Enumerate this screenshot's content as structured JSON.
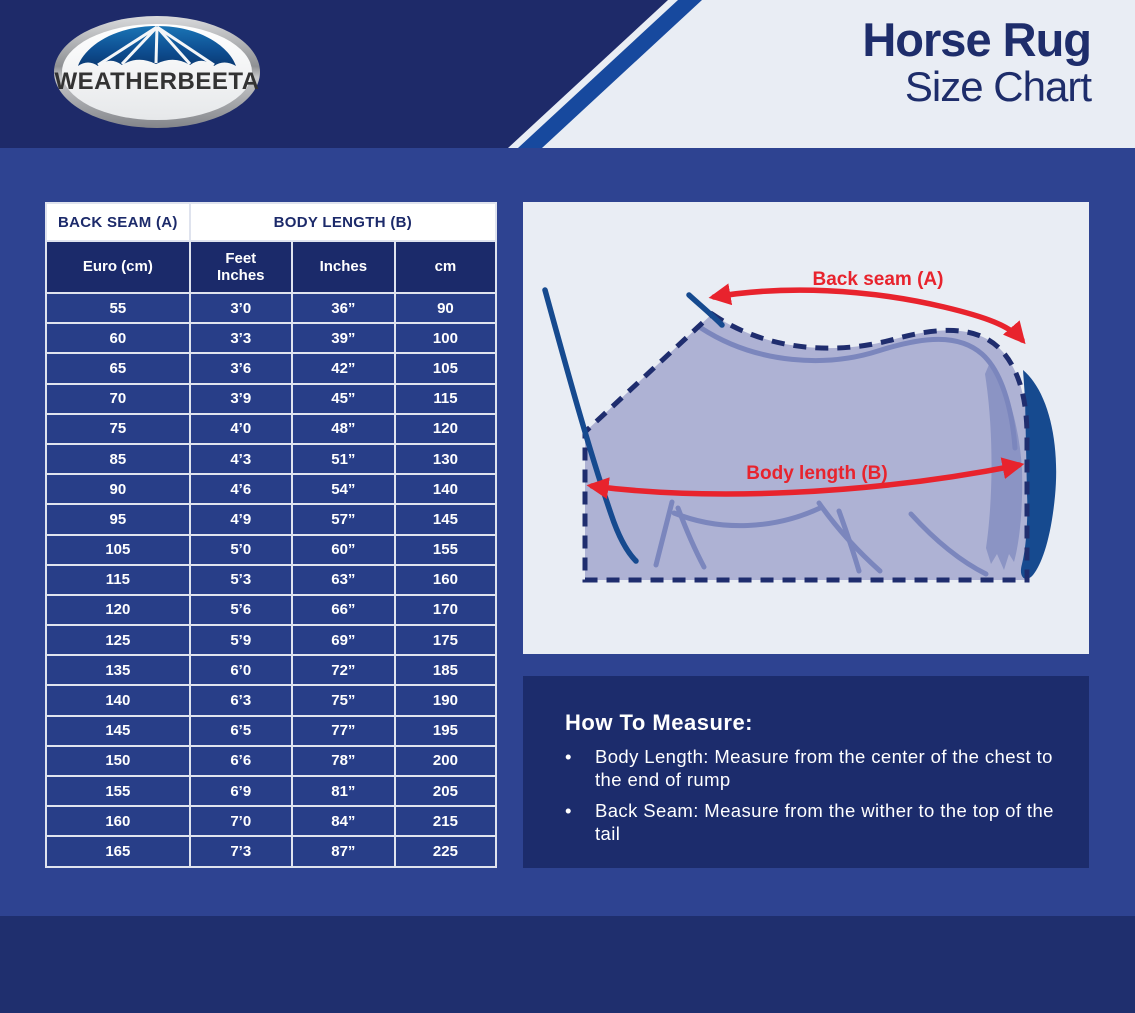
{
  "header": {
    "logo_text": "WEATHERBEETA",
    "title_line1": "Horse Rug",
    "title_line2": "Size Chart"
  },
  "table": {
    "group_headers": {
      "back_seam": "BACK SEAM (A)",
      "body_length": "BODY LENGTH (B)"
    },
    "columns": [
      "Euro (cm)",
      "Feet\nInches",
      "Inches",
      "cm"
    ],
    "rows": [
      [
        "55",
        "3’0",
        "36”",
        "90"
      ],
      [
        "60",
        "3’3",
        "39”",
        "100"
      ],
      [
        "65",
        "3’6",
        "42”",
        "105"
      ],
      [
        "70",
        "3’9",
        "45”",
        "115"
      ],
      [
        "75",
        "4’0",
        "48”",
        "120"
      ],
      [
        "85",
        "4’3",
        "51”",
        "130"
      ],
      [
        "90",
        "4’6",
        "54”",
        "140"
      ],
      [
        "95",
        "4’9",
        "57”",
        "145"
      ],
      [
        "105",
        "5’0",
        "60”",
        "155"
      ],
      [
        "115",
        "5’3",
        "63”",
        "160"
      ],
      [
        "120",
        "5’6",
        "66”",
        "170"
      ],
      [
        "125",
        "5’9",
        "69”",
        "175"
      ],
      [
        "135",
        "6’0",
        "72”",
        "185"
      ],
      [
        "140",
        "6’3",
        "75”",
        "190"
      ],
      [
        "145",
        "6’5",
        "77”",
        "195"
      ],
      [
        "150",
        "6’6",
        "78”",
        "200"
      ],
      [
        "155",
        "6’9",
        "81”",
        "205"
      ],
      [
        "160",
        "7’0",
        "84”",
        "215"
      ],
      [
        "165",
        "7’3",
        "87”",
        "225"
      ]
    ]
  },
  "diagram": {
    "back_seam_label": "Back seam (A)",
    "body_length_label": "Body length (B)"
  },
  "howto": {
    "heading": "How To Measure:",
    "bullets": [
      "Body Length: Measure from the center of the chest to the end of rump",
      "Back Seam: Measure from the wither to the top of the tail"
    ]
  },
  "colors": {
    "page_background": "#2e4391",
    "dark_navy": "#1e2a69",
    "diagonal_stripe_blue": "#17499e",
    "light_panel": "#e9edf4",
    "table_cell_blue": "#283e88",
    "table_header_navy": "#1b2a6a",
    "gridline": "#dfe3ee",
    "accent_red": "#e8232d",
    "horse_body": "#aeb2d4",
    "horse_detail": "#7b86bd",
    "horse_navy": "#164a8f",
    "title_navy": "#1e2d6b"
  }
}
